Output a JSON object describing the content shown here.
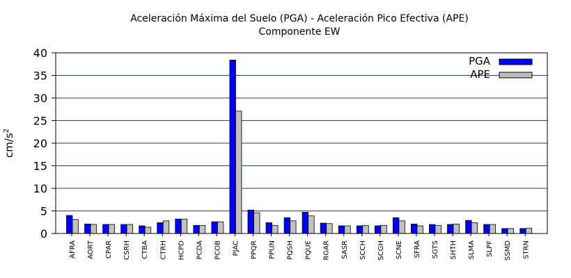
{
  "chart_data": {
    "type": "bar",
    "title": "Aceleración Máxima del Suelo (PGA) -  Aceleración Pico Efectiva (APE)",
    "subtitle": "Componente EW",
    "ylabel": "cm/s",
    "ylabel_sup": "2",
    "xlabel": "",
    "ylim": [
      0,
      40
    ],
    "yticks": [
      0,
      5,
      10,
      15,
      20,
      25,
      30,
      35,
      40
    ],
    "grid": "horizontal",
    "legend_position": "top-right",
    "categories": [
      "AFRA",
      "AORT",
      "CPAR",
      "CSRH",
      "CTBA",
      "CTRH",
      "HCPD",
      "PCDA",
      "PCOB",
      "PJAC",
      "PPQR",
      "PPUN",
      "PQSH",
      "PQUE",
      "RGAR",
      "SASR",
      "SCCH",
      "SCGH",
      "SCNE",
      "SFRA",
      "SGTS",
      "SHTH",
      "SLMA",
      "SLPF",
      "SSMD",
      "STRN"
    ],
    "series": [
      {
        "name": "PGA",
        "color": "#0000ff",
        "values": [
          4.0,
          2.1,
          2.0,
          2.0,
          1.7,
          2.4,
          3.2,
          1.8,
          2.6,
          38.4,
          5.2,
          2.4,
          3.5,
          4.7,
          2.3,
          1.7,
          1.7,
          1.7,
          3.5,
          2.1,
          2.0,
          2.0,
          2.9,
          2.0,
          1.1,
          1.1
        ]
      },
      {
        "name": "APE",
        "color": "#c0c0c0",
        "values": [
          3.1,
          2.0,
          2.0,
          2.0,
          1.4,
          2.8,
          3.2,
          1.8,
          2.6,
          27.1,
          4.6,
          1.8,
          2.8,
          3.9,
          2.2,
          1.7,
          1.8,
          1.8,
          2.8,
          1.7,
          1.8,
          2.1,
          2.4,
          2.0,
          1.1,
          1.2
        ]
      }
    ]
  }
}
